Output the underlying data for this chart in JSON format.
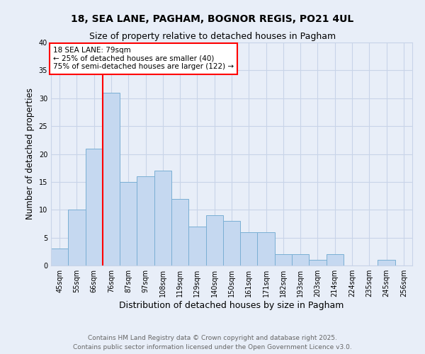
{
  "title_line1": "18, SEA LANE, PAGHAM, BOGNOR REGIS, PO21 4UL",
  "title_line2": "Size of property relative to detached houses in Pagham",
  "xlabel": "Distribution of detached houses by size in Pagham",
  "ylabel": "Number of detached properties",
  "categories": [
    "45sqm",
    "55sqm",
    "66sqm",
    "76sqm",
    "87sqm",
    "97sqm",
    "108sqm",
    "119sqm",
    "129sqm",
    "140sqm",
    "150sqm",
    "161sqm",
    "171sqm",
    "182sqm",
    "193sqm",
    "203sqm",
    "214sqm",
    "224sqm",
    "235sqm",
    "245sqm",
    "256sqm"
  ],
  "values": [
    3,
    10,
    21,
    31,
    15,
    16,
    17,
    12,
    7,
    9,
    8,
    6,
    6,
    2,
    2,
    1,
    2,
    0,
    0,
    1,
    0
  ],
  "bar_color": "#c5d8f0",
  "bar_edge_color": "#7aafd4",
  "bar_edge_width": 0.7,
  "annotation_text": "18 SEA LANE: 79sqm\n← 25% of detached houses are smaller (40)\n75% of semi-detached houses are larger (122) →",
  "annotation_box_color": "white",
  "annotation_box_edge_color": "red",
  "ylim": [
    0,
    40
  ],
  "yticks": [
    0,
    5,
    10,
    15,
    20,
    25,
    30,
    35,
    40
  ],
  "grid_color": "#c8d4e8",
  "background_color": "#e8eef8",
  "footer_line1": "Contains HM Land Registry data © Crown copyright and database right 2025.",
  "footer_line2": "Contains public sector information licensed under the Open Government Licence v3.0.",
  "title_fontsize": 10,
  "subtitle_fontsize": 9,
  "tick_fontsize": 7,
  "xlabel_fontsize": 9,
  "ylabel_fontsize": 8.5,
  "annotation_fontsize": 7.5,
  "footer_fontsize": 6.5
}
